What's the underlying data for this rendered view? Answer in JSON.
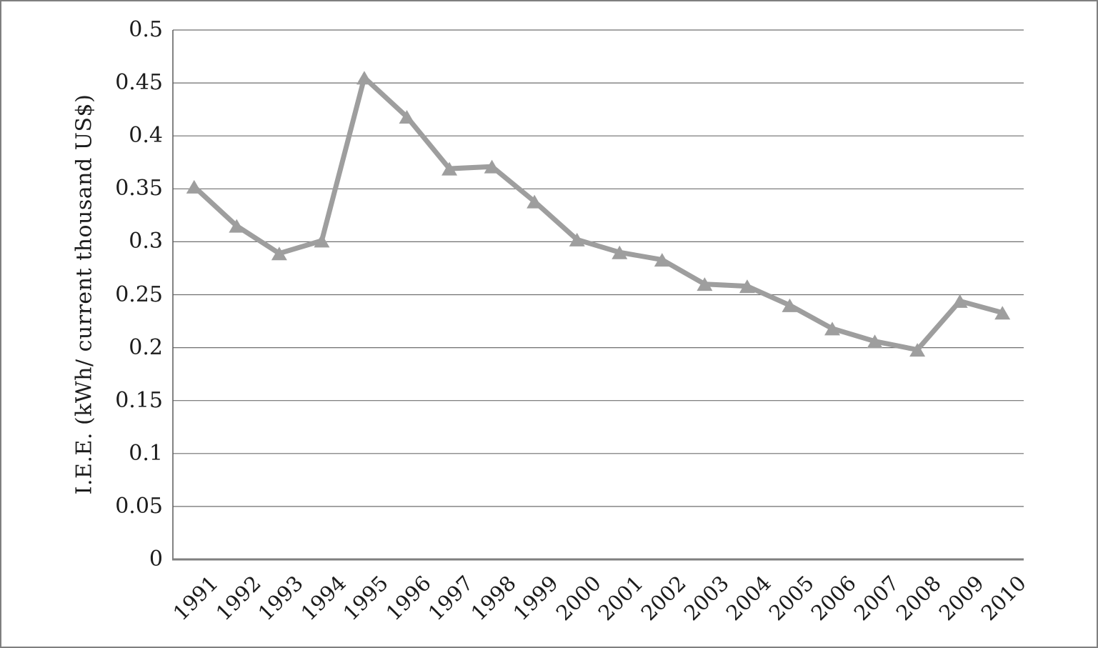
{
  "chart_data": {
    "type": "line",
    "title": "",
    "xlabel": "",
    "ylabel": "I.E.E. (kWh/ current thousand US$)",
    "categories": [
      "1991",
      "1992",
      "1993",
      "1994",
      "1995",
      "1996",
      "1997",
      "1998",
      "1999",
      "2000",
      "2001",
      "2002",
      "2003",
      "2004",
      "2005",
      "2006",
      "2007",
      "2008",
      "2009",
      "2010"
    ],
    "series": [
      {
        "name": "I.E.E.",
        "values": [
          0.352,
          0.315,
          0.289,
          0.301,
          0.455,
          0.418,
          0.369,
          0.371,
          0.338,
          0.302,
          0.29,
          0.283,
          0.26,
          0.258,
          0.24,
          0.218,
          0.206,
          0.198,
          0.244,
          0.233
        ]
      }
    ],
    "ylim": [
      0,
      0.5
    ],
    "ytick_step": 0.05,
    "yticks": [
      {
        "value": 0,
        "label": "0"
      },
      {
        "value": 0.05,
        "label": "0.05"
      },
      {
        "value": 0.1,
        "label": "0.1"
      },
      {
        "value": 0.15,
        "label": "0.15"
      },
      {
        "value": 0.2,
        "label": "0.2"
      },
      {
        "value": 0.25,
        "label": "0.25"
      },
      {
        "value": 0.3,
        "label": "0.3"
      },
      {
        "value": 0.35,
        "label": "0.35"
      },
      {
        "value": 0.4,
        "label": "0.4"
      },
      {
        "value": 0.45,
        "label": "0.45"
      },
      {
        "value": 0.5,
        "label": "0.5"
      }
    ],
    "grid": true,
    "legend": false,
    "marker": "triangle-up",
    "colors": {
      "line": "#9e9e9e",
      "marker": "#9e9e9e",
      "gridline": "#6f6f6f",
      "axis": "#7f7f7f",
      "text": "#1c1c1c",
      "border": "#7f7f7f"
    }
  }
}
